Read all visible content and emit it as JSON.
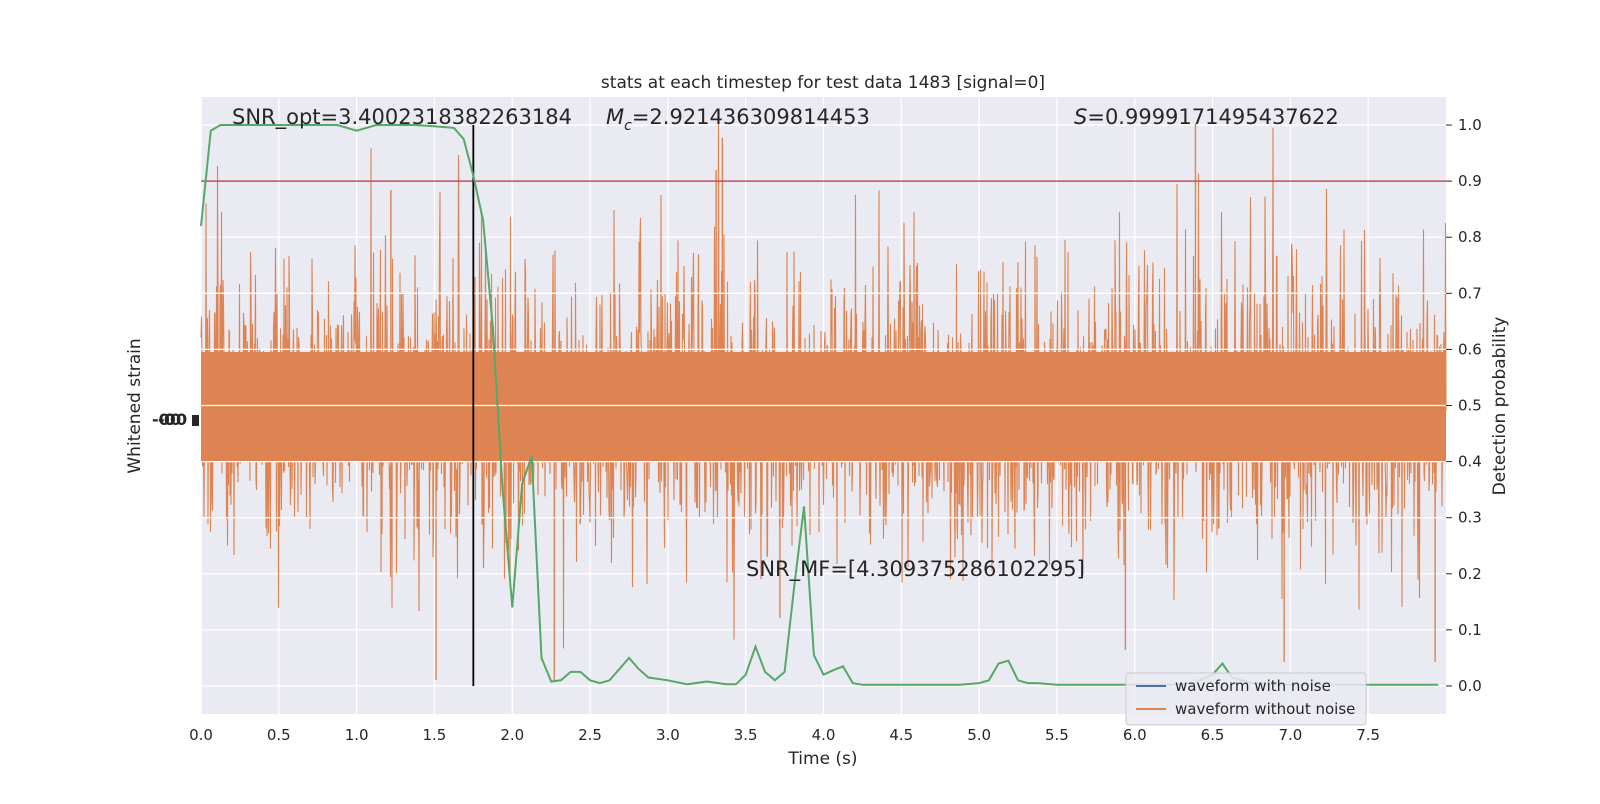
{
  "chart_data": {
    "type": "line",
    "title": "stats at each timestep for test data 1483 [signal=0]",
    "xlabel": "Time (s)",
    "ylabel_left": "Whitened strain",
    "ylabel_right": "Detection probability",
    "xlim": [
      0,
      8
    ],
    "ylim_right": [
      -0.05,
      1.05
    ],
    "x_ticks": [
      0.0,
      0.5,
      1.0,
      1.5,
      2.0,
      2.5,
      3.0,
      3.5,
      4.0,
      4.5,
      5.0,
      5.5,
      6.0,
      6.5,
      7.0,
      7.5
    ],
    "x_tick_labels": [
      "0.0",
      "0.5",
      "1.0",
      "1.5",
      "2.0",
      "2.5",
      "3.0",
      "3.5",
      "4.0",
      "4.5",
      "5.0",
      "5.5",
      "6.0",
      "6.5",
      "7.0",
      "7.5"
    ],
    "y_right_ticks": [
      0.0,
      0.1,
      0.2,
      0.3,
      0.4,
      0.5,
      0.6,
      0.7,
      0.8,
      0.9,
      1.0
    ],
    "y_right_tick_labels": [
      "0.0",
      "0.1",
      "0.2",
      "0.3",
      "0.4",
      "0.5",
      "0.6",
      "0.7",
      "0.8",
      "0.9",
      "1.0"
    ],
    "grid": true,
    "legend_position": "bottom-right",
    "annotations": {
      "snr_opt": "SNR_opt=3.4002318382263184",
      "mc_symbol": "M",
      "mc_subscript": "c",
      "mc_value": "=2.921436309814453",
      "s_symbol": "S",
      "s_value": "=0.9999171495437622",
      "snr_mf": "SNR_MF=[4.309375286102295]"
    },
    "series": [
      {
        "name": "waveform with noise",
        "color": "#4c72b0"
      },
      {
        "name": "waveform without noise",
        "color": "#dd8452"
      }
    ],
    "detection_probability": {
      "color": "#55a868",
      "x": [
        0.0,
        0.063,
        0.125,
        0.25,
        0.375,
        0.5,
        0.625,
        0.75,
        0.875,
        1.0,
        1.063,
        1.125,
        1.25,
        1.375,
        1.5,
        1.625,
        1.688,
        1.75,
        1.813,
        1.875,
        1.938,
        2.0,
        2.063,
        2.125,
        2.188,
        2.25,
        2.313,
        2.375,
        2.438,
        2.5,
        2.563,
        2.625,
        2.688,
        2.75,
        2.813,
        2.875,
        3.0,
        3.125,
        3.25,
        3.375,
        3.438,
        3.5,
        3.563,
        3.625,
        3.688,
        3.75,
        3.813,
        3.875,
        3.938,
        4.0,
        4.063,
        4.125,
        4.188,
        4.25,
        4.375,
        4.5,
        4.625,
        4.75,
        4.875,
        5.0,
        5.063,
        5.125,
        5.188,
        5.25,
        5.313,
        5.375,
        5.5,
        5.625,
        5.75,
        5.875,
        6.0,
        6.125,
        6.25,
        6.375,
        6.5,
        6.563,
        6.625,
        6.75,
        6.875,
        7.0,
        7.125,
        7.25,
        7.375,
        7.5,
        7.625,
        7.75,
        7.875,
        7.95
      ],
      "y": [
        0.82,
        0.99,
        1.0,
        1.0,
        1.0,
        1.0,
        1.0,
        1.0,
        1.0,
        0.99,
        0.995,
        1.0,
        1.0,
        1.0,
        0.998,
        0.995,
        0.975,
        0.91,
        0.83,
        0.64,
        0.35,
        0.14,
        0.36,
        0.41,
        0.05,
        0.008,
        0.01,
        0.025,
        0.025,
        0.01,
        0.005,
        0.01,
        0.03,
        0.05,
        0.03,
        0.015,
        0.01,
        0.003,
        0.008,
        0.003,
        0.003,
        0.02,
        0.07,
        0.025,
        0.01,
        0.025,
        0.18,
        0.32,
        0.055,
        0.02,
        0.028,
        0.035,
        0.005,
        0.002,
        0.002,
        0.002,
        0.002,
        0.002,
        0.002,
        0.005,
        0.01,
        0.04,
        0.045,
        0.01,
        0.005,
        0.005,
        0.002,
        0.002,
        0.002,
        0.002,
        0.002,
        0.002,
        0.002,
        0.005,
        0.02,
        0.04,
        0.015,
        0.005,
        0.002,
        0.002,
        0.002,
        0.002,
        0.002,
        0.002,
        0.002,
        0.002,
        0.002,
        0.002
      ]
    },
    "threshold": {
      "value": 0.9,
      "color": "#c44e52"
    },
    "marker_time": {
      "x": 1.75,
      "color": "#000000"
    }
  }
}
